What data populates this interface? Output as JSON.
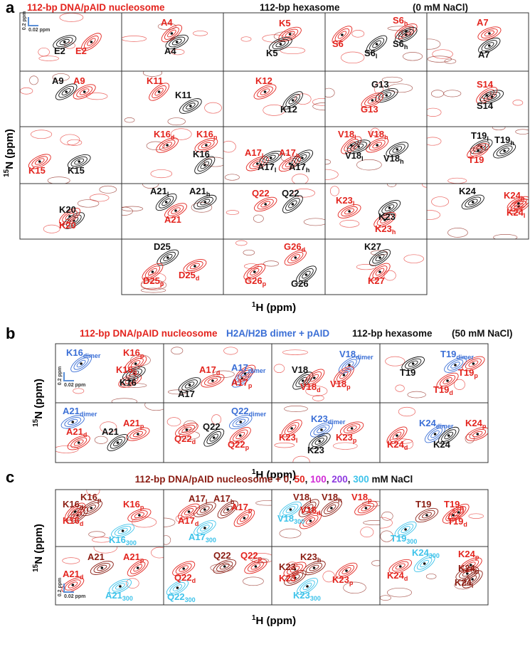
{
  "panels": [
    {
      "letter": "a",
      "header": [
        {
          "text": "112-bp DNA/pAID nucleosome",
          "color": "#e3241e"
        },
        {
          "text": "112-bp hexasome",
          "color": "#111111"
        },
        {
          "text": "(0 mM NaCl)",
          "color": "#111111"
        }
      ],
      "y_label": {
        "sup": "15",
        "text": "N (ppm)"
      },
      "x_label": {
        "sup": "1",
        "text": "H (ppm)"
      },
      "scale_bar": {
        "y": "0.2 ppm",
        "x": "0.02 ppm"
      },
      "cells": [
        {
          "labels": [
            {
              "text": "E2",
              "color": "#111111"
            },
            {
              "text": "E2",
              "color": "#e3241e"
            }
          ]
        },
        {
          "labels": [
            {
              "text": "A4",
              "color": "#e3241e"
            },
            {
              "text": "A4",
              "color": "#111111"
            }
          ]
        },
        {
          "labels": [
            {
              "text": "K5",
              "color": "#e3241e"
            },
            {
              "text": "K5",
              "color": "#111111"
            }
          ]
        },
        {
          "labels": [
            {
              "text": "S6",
              "sub": "h",
              "color": "#e3241e"
            },
            {
              "text": "S6",
              "color": "#e3241e"
            },
            {
              "text": "S6",
              "sub": "l",
              "color": "#111111"
            },
            {
              "text": "S6",
              "sub": "h",
              "color": "#111111"
            }
          ]
        },
        {
          "labels": [
            {
              "text": "A7",
              "color": "#e3241e"
            },
            {
              "text": "A7",
              "color": "#111111"
            }
          ]
        },
        {
          "labels": [
            {
              "text": "A9",
              "color": "#111111"
            },
            {
              "text": "A9",
              "color": "#e3241e"
            }
          ]
        },
        {
          "labels": [
            {
              "text": "K11",
              "color": "#e3241e"
            },
            {
              "text": "K11",
              "color": "#111111"
            }
          ]
        },
        {
          "labels": [
            {
              "text": "K12",
              "color": "#e3241e"
            },
            {
              "text": "K12",
              "color": "#111111"
            }
          ]
        },
        {
          "labels": [
            {
              "text": "G13",
              "color": "#111111"
            },
            {
              "text": "G13",
              "color": "#e3241e"
            }
          ]
        },
        {
          "labels": [
            {
              "text": "S14",
              "color": "#e3241e"
            },
            {
              "text": "S14",
              "color": "#111111"
            }
          ]
        },
        {
          "labels": [
            {
              "text": "K15",
              "color": "#e3241e"
            },
            {
              "text": "K15",
              "color": "#111111"
            }
          ]
        },
        {
          "labels": [
            {
              "text": "K16",
              "sub": "d",
              "color": "#e3241e"
            },
            {
              "text": "K16",
              "sub": "p",
              "color": "#e3241e"
            },
            {
              "text": "K16",
              "color": "#111111"
            }
          ]
        },
        {
          "labels": [
            {
              "text": "A17",
              "sub": "l",
              "color": "#e3241e"
            },
            {
              "text": "A17",
              "sub": "h",
              "color": "#e3241e"
            },
            {
              "text": "A17",
              "sub": "l",
              "color": "#111111"
            },
            {
              "text": "A17",
              "sub": "h",
              "color": "#111111"
            }
          ]
        },
        {
          "labels": [
            {
              "text": "V18",
              "sub": "l",
              "color": "#e3241e"
            },
            {
              "text": "V18",
              "sub": "h",
              "color": "#e3241e"
            },
            {
              "text": "V18",
              "sub": "l",
              "color": "#111111"
            },
            {
              "text": "V18",
              "sub": "h",
              "color": "#111111"
            }
          ]
        },
        {
          "labels": [
            {
              "text": "T19",
              "sub": "l",
              "color": "#111111"
            },
            {
              "text": "T19",
              "sub": "h",
              "color": "#111111"
            },
            {
              "text": "T19",
              "color": "#e3241e"
            }
          ]
        },
        {
          "labels": [
            {
              "text": "K20",
              "color": "#111111"
            },
            {
              "text": "K20",
              "color": "#e3241e"
            }
          ]
        },
        {
          "labels": [
            {
              "text": "A21",
              "sub": "l",
              "color": "#111111"
            },
            {
              "text": "A21",
              "sub": "h",
              "color": "#111111"
            },
            {
              "text": "A21",
              "color": "#e3241e"
            }
          ]
        },
        {
          "labels": [
            {
              "text": "Q22",
              "color": "#e3241e"
            },
            {
              "text": "Q22",
              "color": "#111111"
            }
          ]
        },
        {
          "labels": [
            {
              "text": "K23",
              "sub": "l",
              "color": "#e3241e"
            },
            {
              "text": "K23",
              "color": "#111111"
            },
            {
              "text": "K23",
              "sub": "h",
              "color": "#e3241e"
            }
          ]
        },
        {
          "labels": [
            {
              "text": "K24",
              "color": "#111111"
            },
            {
              "text": "K24",
              "sub": "h",
              "color": "#e3241e"
            },
            {
              "text": "K24",
              "sub": "l",
              "color": "#e3241e"
            }
          ]
        },
        {
          "labels": [
            {
              "text": "D25",
              "color": "#111111"
            },
            {
              "text": "D25",
              "sub": "p",
              "color": "#e3241e"
            },
            {
              "text": "D25",
              "sub": "d",
              "color": "#e3241e"
            }
          ]
        },
        {
          "labels": [
            {
              "text": "G26",
              "sub": "d",
              "color": "#e3241e"
            },
            {
              "text": "G26",
              "sub": "p",
              "color": "#e3241e"
            },
            {
              "text": "G26",
              "color": "#111111"
            }
          ]
        },
        {
          "labels": [
            {
              "text": "K27",
              "color": "#111111"
            },
            {
              "text": "K27",
              "color": "#e3241e"
            }
          ]
        }
      ]
    },
    {
      "letter": "b",
      "header": [
        {
          "text": "112-bp DNA/pAID nucleosome",
          "color": "#e3241e"
        },
        {
          "text": "H2A/H2B dimer + pAID",
          "color": "#3b6fd6"
        },
        {
          "text": "112-bp hexasome",
          "color": "#111111"
        },
        {
          "text": "(50 mM NaCl)",
          "color": "#111111"
        }
      ],
      "y_label": {
        "sup": "15",
        "text": "N (ppm)"
      },
      "x_label": {
        "sup": "1",
        "text": "H (ppm)"
      },
      "scale_bar": {
        "y": "0.2 ppm",
        "x": "0.02 ppm"
      },
      "cells": [
        {
          "labels": [
            {
              "text": "K16",
              "sub": "dimer",
              "color": "#3b6fd6"
            },
            {
              "text": "K16",
              "sub": "p",
              "color": "#e3241e"
            },
            {
              "text": "K16",
              "sub": "d",
              "color": "#e3241e"
            },
            {
              "text": "K16",
              "color": "#111111"
            }
          ]
        },
        {
          "labels": [
            {
              "text": "A17",
              "sub": "d",
              "color": "#e3241e"
            },
            {
              "text": "A17",
              "sub": "dimer",
              "color": "#3b6fd6"
            },
            {
              "text": "A17",
              "color": "#111111"
            },
            {
              "text": "A17",
              "sub": "p",
              "color": "#e3241e"
            }
          ]
        },
        {
          "labels": [
            {
              "text": "V18",
              "sub": "dimer",
              "color": "#3b6fd6"
            },
            {
              "text": "V18",
              "color": "#111111"
            },
            {
              "text": "V18",
              "sub": "p",
              "color": "#e3241e"
            },
            {
              "text": "V18",
              "sub": "d",
              "color": "#e3241e"
            }
          ]
        },
        {
          "labels": [
            {
              "text": "T19",
              "sub": "dimer",
              "color": "#3b6fd6"
            },
            {
              "text": "T19",
              "color": "#111111"
            },
            {
              "text": "T19",
              "sub": "p",
              "color": "#e3241e"
            },
            {
              "text": "T19",
              "sub": "d",
              "color": "#e3241e"
            }
          ]
        },
        {
          "labels": [
            {
              "text": "A21",
              "sub": "dimer",
              "color": "#3b6fd6"
            },
            {
              "text": "A21",
              "sub": "p",
              "color": "#e3241e"
            },
            {
              "text": "A21",
              "sub": "d",
              "color": "#e3241e"
            },
            {
              "text": "A21",
              "color": "#111111"
            }
          ]
        },
        {
          "labels": [
            {
              "text": "Q22",
              "sub": "dimer",
              "color": "#3b6fd6"
            },
            {
              "text": "Q22",
              "color": "#111111"
            },
            {
              "text": "Q22",
              "sub": "d",
              "color": "#e3241e"
            },
            {
              "text": "Q22",
              "sub": "p",
              "color": "#e3241e"
            }
          ]
        },
        {
          "labels": [
            {
              "text": "K23",
              "sub": "dimer",
              "color": "#3b6fd6"
            },
            {
              "text": "K23",
              "sub": "l",
              "color": "#e3241e"
            },
            {
              "text": "K23",
              "sub": "p",
              "color": "#e3241e"
            },
            {
              "text": "K23",
              "color": "#111111"
            }
          ]
        },
        {
          "labels": [
            {
              "text": "K24",
              "sub": "dimer",
              "color": "#3b6fd6"
            },
            {
              "text": "K24",
              "sub": "p",
              "color": "#e3241e"
            },
            {
              "text": "K24",
              "sub": "d",
              "color": "#e3241e"
            },
            {
              "text": "K24",
              "color": "#111111"
            }
          ]
        }
      ]
    },
    {
      "letter": "c",
      "header": [
        {
          "text": "112-bp DNA/pAID nucleosome + ",
          "color": "#8a1c12"
        },
        {
          "text": "0",
          "color": "#8a1c12"
        },
        {
          "text": ", ",
          "color": "#111111"
        },
        {
          "text": "50",
          "color": "#e3241e"
        },
        {
          "text": ", ",
          "color": "#111111"
        },
        {
          "text": "100",
          "color": "#d12bd6"
        },
        {
          "text": ", ",
          "color": "#111111"
        },
        {
          "text": "200",
          "color": "#8e3be0"
        },
        {
          "text": ", ",
          "color": "#111111"
        },
        {
          "text": "300",
          "color": "#3ec3ea"
        },
        {
          "text": " mM NaCl",
          "color": "#111111"
        }
      ],
      "y_label": {
        "sup": "15",
        "text": "N (ppm)"
      },
      "x_label": {
        "sup": "1",
        "text": "H (ppm)"
      },
      "scale_bar": {
        "y": "0.2 ppm",
        "x": "0.02 ppm"
      },
      "cells": [
        {
          "labels": [
            {
              "text": "K16",
              "sub": "d",
              "color": "#8a1c12"
            },
            {
              "text": "K16",
              "sub": "p",
              "color": "#8a1c12"
            },
            {
              "text": "K16",
              "sub": "p",
              "color": "#e3241e"
            },
            {
              "text": "K16",
              "sub": "d",
              "color": "#e3241e"
            },
            {
              "text": "K16",
              "sub": "300",
              "color": "#3ec3ea"
            }
          ]
        },
        {
          "labels": [
            {
              "text": "A17",
              "sub": "l",
              "color": "#8a1c12"
            },
            {
              "text": "A17",
              "sub": "h",
              "color": "#8a1c12"
            },
            {
              "text": "A17",
              "sub": "p",
              "color": "#e3241e"
            },
            {
              "text": "A17",
              "sub": "d",
              "color": "#e3241e"
            },
            {
              "text": "A17",
              "sub": "300",
              "color": "#3ec3ea"
            }
          ]
        },
        {
          "labels": [
            {
              "text": "V18",
              "sub": "l",
              "color": "#8a1c12"
            },
            {
              "text": "V18",
              "sub": "h",
              "color": "#8a1c12"
            },
            {
              "text": "V18",
              "sub": "p",
              "color": "#e3241e"
            },
            {
              "text": "V18",
              "sub": "d",
              "color": "#e3241e"
            },
            {
              "text": "V18",
              "sub": "300",
              "color": "#3ec3ea"
            }
          ]
        },
        {
          "labels": [
            {
              "text": "T19",
              "color": "#8a1c12"
            },
            {
              "text": "T19",
              "sub": "p",
              "color": "#e3241e"
            },
            {
              "text": "T19",
              "sub": "d",
              "color": "#e3241e"
            },
            {
              "text": "T19",
              "sub": "300",
              "color": "#3ec3ea"
            }
          ]
        },
        {
          "labels": [
            {
              "text": "A21",
              "color": "#8a1c12"
            },
            {
              "text": "A21",
              "sub": "p",
              "color": "#e3241e"
            },
            {
              "text": "A21",
              "sub": "d",
              "color": "#e3241e"
            },
            {
              "text": "A21",
              "sub": "300",
              "color": "#3ec3ea"
            }
          ]
        },
        {
          "labels": [
            {
              "text": "Q22",
              "color": "#8a1c12"
            },
            {
              "text": "Q22",
              "sub": "p",
              "color": "#e3241e"
            },
            {
              "text": "Q22",
              "sub": "d",
              "color": "#e3241e"
            },
            {
              "text": "Q22",
              "sub": "300",
              "color": "#3ec3ea"
            }
          ]
        },
        {
          "labels": [
            {
              "text": "K23",
              "sub": "h",
              "color": "#8a1c12"
            },
            {
              "text": "K23",
              "color": "#8a1c12"
            },
            {
              "text": "K23",
              "color": "#e3241e"
            },
            {
              "text": "K23",
              "sub": "p",
              "color": "#e3241e"
            },
            {
              "text": "K23",
              "sub": "300",
              "color": "#3ec3ea"
            }
          ]
        },
        {
          "labels": [
            {
              "text": "K24",
              "sub": "p",
              "color": "#e3241e"
            },
            {
              "text": "K24",
              "sub": "d",
              "color": "#e3241e"
            },
            {
              "text": "K24",
              "sub": "h",
              "color": "#8a1c12"
            },
            {
              "text": "K24",
              "sub": "l",
              "color": "#8a1c12"
            },
            {
              "text": "K24",
              "sub": "300",
              "color": "#3ec3ea"
            }
          ]
        }
      ]
    }
  ]
}
